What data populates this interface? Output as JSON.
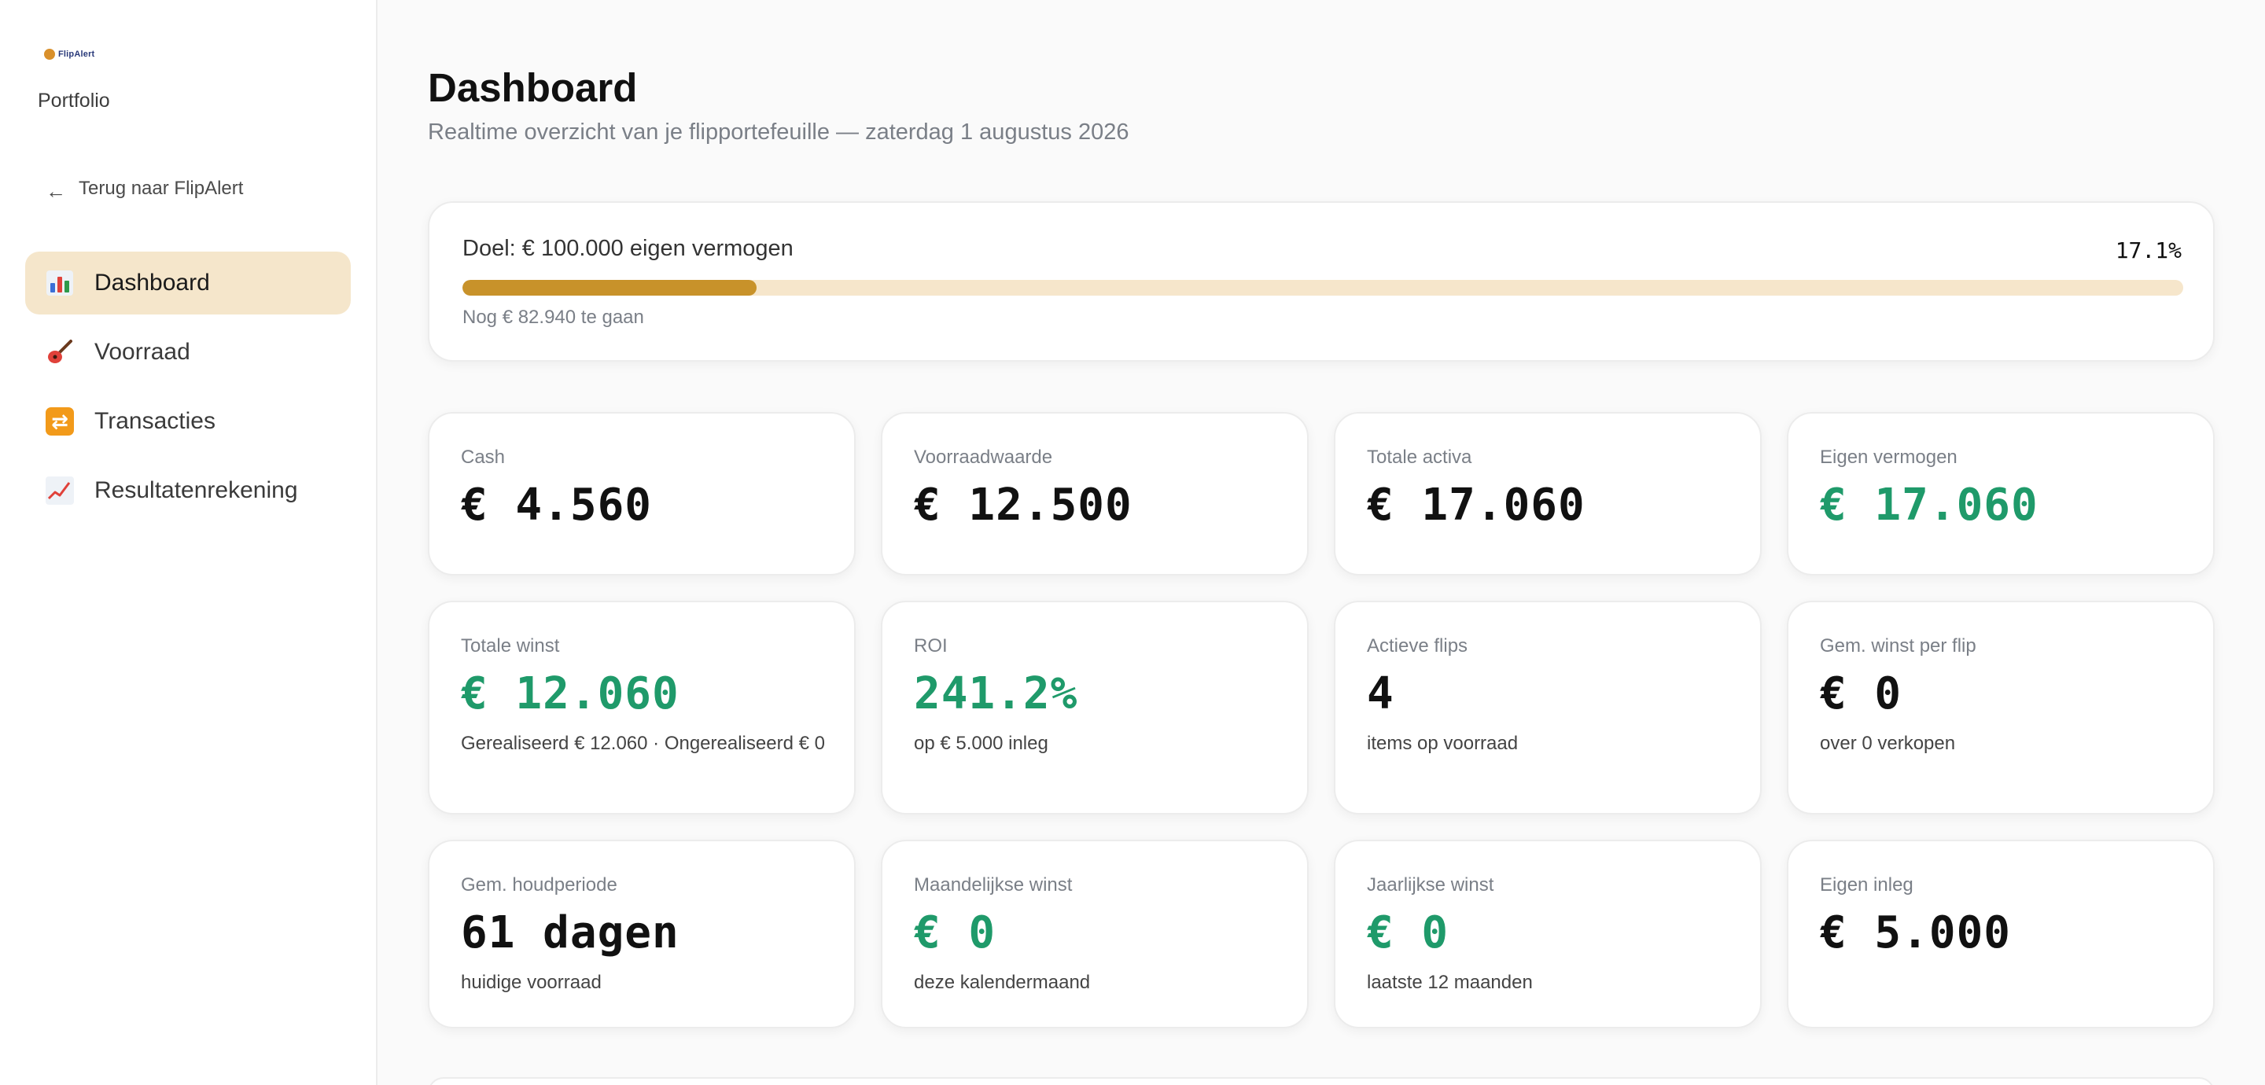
{
  "sidebar": {
    "logo_text": "FlipAlert",
    "portfolio_label": "Portfolio",
    "back_arrow": "←",
    "back_label": "Terug naar FlipAlert",
    "items": [
      {
        "label": "Dashboard",
        "icon": "bar-chart-icon",
        "active": true
      },
      {
        "label": "Voorraad",
        "icon": "guitar-icon",
        "active": false
      },
      {
        "label": "Transacties",
        "icon": "swap-icon",
        "active": false
      },
      {
        "label": "Resultatenrekening",
        "icon": "trend-up-icon",
        "active": false
      }
    ]
  },
  "header": {
    "title": "Dashboard",
    "subtitle": "Realtime overzicht van je flipportefeuille — zaterdag 1 augustus 2026"
  },
  "goal": {
    "label": "Doel: € 100.000 eigen vermogen",
    "percent_text": "17.1%",
    "progress": 0.171,
    "remaining": "Nog € 82.940 te gaan"
  },
  "cards": [
    {
      "label": "Cash",
      "value": "€ 4.560",
      "sub": "",
      "green": false
    },
    {
      "label": "Voorraadwaarde",
      "value": "€ 12.500",
      "sub": "",
      "green": false
    },
    {
      "label": "Totale activa",
      "value": "€ 17.060",
      "sub": "",
      "green": false
    },
    {
      "label": "Eigen vermogen",
      "value": "€ 17.060",
      "sub": "",
      "green": true
    },
    {
      "label": "Totale winst",
      "value": "€ 12.060",
      "sub": "Gerealiseerd € 12.060 · Ongerealiseerd € 0",
      "green": true
    },
    {
      "label": "ROI",
      "value": "241.2%",
      "sub": "op € 5.000 inleg",
      "green": true
    },
    {
      "label": "Actieve flips",
      "value": "4",
      "sub": "items op voorraad",
      "green": false
    },
    {
      "label": "Gem. winst per flip",
      "value": "€ 0",
      "sub": "over 0 verkopen",
      "green": false
    },
    {
      "label": "Gem. houdperiode",
      "value": "61 dagen",
      "sub": "huidige voorraad",
      "green": false
    },
    {
      "label": "Maandelijkse winst",
      "value": "€ 0",
      "sub": "deze kalendermaand",
      "green": true
    },
    {
      "label": "Jaarlijkse winst",
      "value": "€ 0",
      "sub": "laatste 12 maanden",
      "green": true
    },
    {
      "label": "Eigen inleg",
      "value": "€ 5.000",
      "sub": "",
      "green": false
    }
  ],
  "colors": {
    "accent": "#c8922a",
    "active_nav_bg": "#f5e6cb",
    "positive": "#1f9a6a"
  }
}
